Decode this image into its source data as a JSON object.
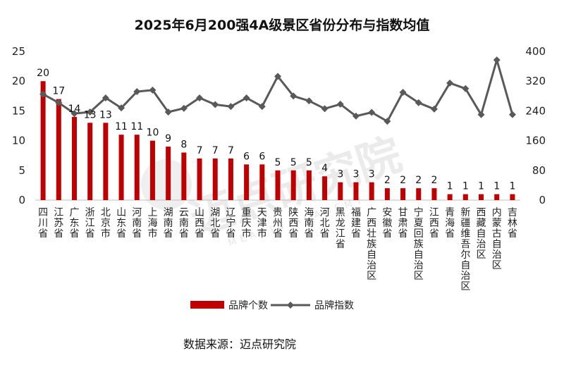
{
  "chart_data": {
    "type": "bar+line",
    "title": "2025年6月200强4A级景区省份分布与指数均值",
    "categories": [
      "四川省",
      "江苏省",
      "广东省",
      "浙江省",
      "北京市",
      "山东省",
      "河南省",
      "上海市",
      "湖南省",
      "云南省",
      "山西省",
      "湖北省",
      "辽宁省",
      "重庆市",
      "天津市",
      "贵州省",
      "陕西省",
      "海南省",
      "河北省",
      "黑龙江省",
      "福建省",
      "广西壮族自治区",
      "安徽省",
      "甘肃省",
      "宁夏回族自治区",
      "江西省",
      "青海省",
      "新疆维吾尔自治区",
      "西藏自治区",
      "内蒙古自治区",
      "吉林省"
    ],
    "series": [
      {
        "name": "品牌个数",
        "type": "bar",
        "axis": "left",
        "color": "#C00000",
        "values": [
          20,
          17,
          14,
          13,
          13,
          11,
          11,
          10,
          9,
          8,
          7,
          7,
          7,
          6,
          6,
          5,
          5,
          5,
          4,
          3,
          3,
          3,
          2,
          2,
          2,
          2,
          1,
          1,
          1,
          1,
          1
        ]
      },
      {
        "name": "品牌指数",
        "type": "line",
        "axis": "right",
        "color": "#595959",
        "values": [
          285,
          262,
          233,
          237,
          275,
          248,
          292,
          296,
          237,
          247,
          275,
          257,
          252,
          275,
          252,
          333,
          280,
          267,
          246,
          258,
          226,
          236,
          212,
          290,
          262,
          245,
          315,
          300,
          230,
          377,
          230
        ]
      }
    ],
    "left_axis": {
      "min": 0,
      "max": 25,
      "ticks": [
        0,
        5,
        10,
        15,
        20,
        25
      ]
    },
    "right_axis": {
      "min": 0,
      "max": 400,
      "ticks": [
        0,
        80,
        160,
        240,
        320,
        400
      ]
    },
    "legend_position": "bottom",
    "grid": false
  },
  "source_text": "数据来源：迈点研究院",
  "watermark": {
    "text": "迈点研究院",
    "subtext": "MEADIN ACADEMY",
    "color": "#EBEBEB"
  }
}
